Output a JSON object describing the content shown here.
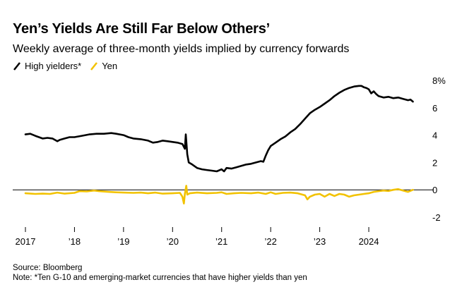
{
  "header": {
    "title": "Yen’s Yields Are Still Far Below Others’",
    "subtitle": "Weekly average of three-month yields implied by currency forwards"
  },
  "colors": {
    "high": "#000000",
    "yen": "#f2c200",
    "zero_line": "#000000"
  },
  "footer": {
    "source": "Source: Bloomberg",
    "note": "Note: *Ten G-10 and emerging-market currencies that have higher yields than yen"
  },
  "chart_data": {
    "type": "line",
    "title": "Yen’s Yields Are Still Far Below Others’",
    "subtitle": "Weekly average of three-month yields implied by currency forwards",
    "xlabel": "",
    "ylabel": "",
    "xlim": [
      2017.0,
      2024.95
    ],
    "ylim": [
      -2,
      8
    ],
    "y_ticks": [
      -2,
      0,
      2,
      4,
      6,
      8
    ],
    "y_tick_labels": [
      "-2",
      "0",
      "2",
      "4",
      "6",
      "8%"
    ],
    "x_ticks": [
      2017,
      2018,
      2019,
      2020,
      2021,
      2022,
      2023,
      2024
    ],
    "x_tick_labels": [
      "2017",
      "’18",
      "’19",
      "’20",
      "’21",
      "’22",
      "’23",
      "2024"
    ],
    "legend": [
      "High yielders*",
      "Yen"
    ],
    "series": [
      {
        "name": "High yielders*",
        "points": [
          [
            2017.0,
            4.05
          ],
          [
            2017.1,
            4.1
          ],
          [
            2017.2,
            3.95
          ],
          [
            2017.35,
            3.75
          ],
          [
            2017.45,
            3.8
          ],
          [
            2017.55,
            3.75
          ],
          [
            2017.65,
            3.55
          ],
          [
            2017.7,
            3.65
          ],
          [
            2017.8,
            3.75
          ],
          [
            2017.9,
            3.85
          ],
          [
            2018.0,
            3.85
          ],
          [
            2018.15,
            3.95
          ],
          [
            2018.3,
            4.05
          ],
          [
            2018.45,
            4.1
          ],
          [
            2018.6,
            4.1
          ],
          [
            2018.75,
            4.15
          ],
          [
            2018.85,
            4.1
          ],
          [
            2019.0,
            4.0
          ],
          [
            2019.1,
            3.85
          ],
          [
            2019.2,
            3.75
          ],
          [
            2019.35,
            3.7
          ],
          [
            2019.5,
            3.6
          ],
          [
            2019.6,
            3.45
          ],
          [
            2019.7,
            3.5
          ],
          [
            2019.8,
            3.6
          ],
          [
            2019.9,
            3.55
          ],
          [
            2020.0,
            3.5
          ],
          [
            2020.1,
            3.45
          ],
          [
            2020.2,
            3.35
          ],
          [
            2020.25,
            3.0
          ],
          [
            2020.27,
            4.05
          ],
          [
            2020.3,
            2.6
          ],
          [
            2020.33,
            2.0
          ],
          [
            2020.4,
            1.85
          ],
          [
            2020.5,
            1.6
          ],
          [
            2020.6,
            1.5
          ],
          [
            2020.7,
            1.45
          ],
          [
            2020.8,
            1.4
          ],
          [
            2020.9,
            1.35
          ],
          [
            2021.0,
            1.5
          ],
          [
            2021.05,
            1.35
          ],
          [
            2021.1,
            1.6
          ],
          [
            2021.2,
            1.55
          ],
          [
            2021.3,
            1.65
          ],
          [
            2021.4,
            1.75
          ],
          [
            2021.5,
            1.85
          ],
          [
            2021.6,
            1.9
          ],
          [
            2021.7,
            2.0
          ],
          [
            2021.8,
            2.1
          ],
          [
            2021.85,
            2.05
          ],
          [
            2021.9,
            2.5
          ],
          [
            2021.95,
            2.9
          ],
          [
            2022.0,
            3.2
          ],
          [
            2022.1,
            3.45
          ],
          [
            2022.2,
            3.7
          ],
          [
            2022.3,
            3.9
          ],
          [
            2022.4,
            4.2
          ],
          [
            2022.5,
            4.45
          ],
          [
            2022.6,
            4.8
          ],
          [
            2022.7,
            5.2
          ],
          [
            2022.8,
            5.6
          ],
          [
            2022.9,
            5.85
          ],
          [
            2023.0,
            6.05
          ],
          [
            2023.1,
            6.3
          ],
          [
            2023.2,
            6.55
          ],
          [
            2023.3,
            6.85
          ],
          [
            2023.4,
            7.1
          ],
          [
            2023.5,
            7.3
          ],
          [
            2023.6,
            7.45
          ],
          [
            2023.7,
            7.55
          ],
          [
            2023.8,
            7.6
          ],
          [
            2023.85,
            7.6
          ],
          [
            2023.9,
            7.5
          ],
          [
            2023.95,
            7.45
          ],
          [
            2024.0,
            7.35
          ],
          [
            2024.05,
            7.05
          ],
          [
            2024.1,
            7.2
          ],
          [
            2024.15,
            7.0
          ],
          [
            2024.2,
            6.85
          ],
          [
            2024.3,
            6.75
          ],
          [
            2024.4,
            6.8
          ],
          [
            2024.5,
            6.7
          ],
          [
            2024.6,
            6.75
          ],
          [
            2024.7,
            6.65
          ],
          [
            2024.8,
            6.55
          ],
          [
            2024.85,
            6.6
          ],
          [
            2024.9,
            6.45
          ]
        ]
      },
      {
        "name": "Yen",
        "points": [
          [
            2017.0,
            -0.25
          ],
          [
            2017.2,
            -0.3
          ],
          [
            2017.35,
            -0.28
          ],
          [
            2017.5,
            -0.3
          ],
          [
            2017.65,
            -0.2
          ],
          [
            2017.8,
            -0.28
          ],
          [
            2018.0,
            -0.22
          ],
          [
            2018.1,
            -0.1
          ],
          [
            2018.25,
            -0.12
          ],
          [
            2018.4,
            -0.05
          ],
          [
            2018.5,
            -0.1
          ],
          [
            2018.7,
            -0.15
          ],
          [
            2018.85,
            -0.18
          ],
          [
            2019.0,
            -0.2
          ],
          [
            2019.2,
            -0.22
          ],
          [
            2019.35,
            -0.2
          ],
          [
            2019.5,
            -0.25
          ],
          [
            2019.65,
            -0.2
          ],
          [
            2019.8,
            -0.28
          ],
          [
            2020.0,
            -0.25
          ],
          [
            2020.15,
            -0.22
          ],
          [
            2020.2,
            -0.5
          ],
          [
            2020.23,
            -1.0
          ],
          [
            2020.25,
            -0.3
          ],
          [
            2020.28,
            0.3
          ],
          [
            2020.3,
            -0.35
          ],
          [
            2020.35,
            -0.25
          ],
          [
            2020.5,
            -0.2
          ],
          [
            2020.7,
            -0.25
          ],
          [
            2020.9,
            -0.22
          ],
          [
            2021.0,
            -0.18
          ],
          [
            2021.1,
            -0.3
          ],
          [
            2021.25,
            -0.25
          ],
          [
            2021.4,
            -0.22
          ],
          [
            2021.6,
            -0.25
          ],
          [
            2021.75,
            -0.2
          ],
          [
            2021.9,
            -0.3
          ],
          [
            2022.0,
            -0.18
          ],
          [
            2022.1,
            -0.3
          ],
          [
            2022.25,
            -0.22
          ],
          [
            2022.4,
            -0.2
          ],
          [
            2022.55,
            -0.25
          ],
          [
            2022.7,
            -0.4
          ],
          [
            2022.75,
            -0.7
          ],
          [
            2022.8,
            -0.5
          ],
          [
            2022.9,
            -0.35
          ],
          [
            2023.0,
            -0.3
          ],
          [
            2023.1,
            -0.5
          ],
          [
            2023.2,
            -0.3
          ],
          [
            2023.3,
            -0.45
          ],
          [
            2023.4,
            -0.3
          ],
          [
            2023.5,
            -0.35
          ],
          [
            2023.6,
            -0.5
          ],
          [
            2023.7,
            -0.4
          ],
          [
            2023.8,
            -0.35
          ],
          [
            2023.9,
            -0.3
          ],
          [
            2024.0,
            -0.25
          ],
          [
            2024.1,
            -0.15
          ],
          [
            2024.2,
            -0.1
          ],
          [
            2024.3,
            -0.05
          ],
          [
            2024.4,
            -0.08
          ],
          [
            2024.5,
            0.0
          ],
          [
            2024.6,
            0.05
          ],
          [
            2024.7,
            -0.05
          ],
          [
            2024.8,
            -0.15
          ],
          [
            2024.9,
            0.0
          ]
        ]
      }
    ]
  }
}
